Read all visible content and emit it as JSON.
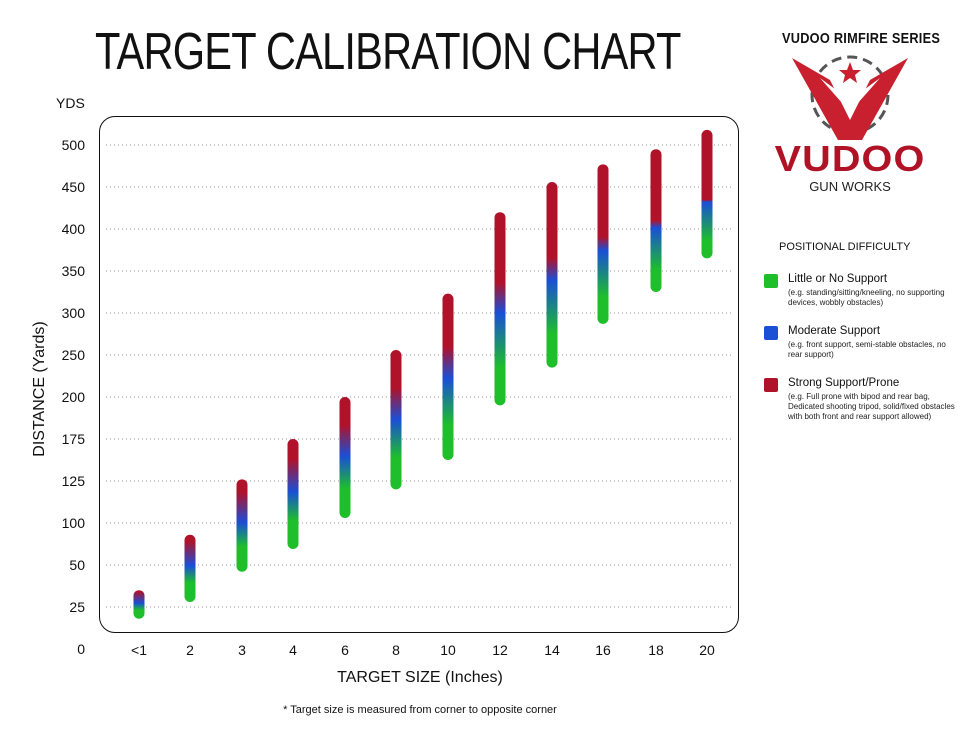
{
  "header": {
    "title": "TARGET CALIBRATION CHART"
  },
  "brand": {
    "series": "VUDOO RIMFIRE SERIES",
    "name": "VUDOO",
    "subtitle": "GUN WORKS"
  },
  "legend": {
    "title": "POSITIONAL DIFFICULTY",
    "items": [
      {
        "label": "Little or No Support",
        "desc": "(e.g. standing/sitting/kneeling, no supporting devices, wobbly obstacles)",
        "color": "#1ebf2a"
      },
      {
        "label": "Moderate Support",
        "desc": "(e.g. front support, semi-stable obstacles, no rear support)",
        "color": "#1a4fd6"
      },
      {
        "label": "Strong Support/Prone",
        "desc": "(e.g. Full prone with bipod and rear bag, Dedicated shooting tripod, solid/fixed obstacles with both front and rear support allowed)",
        "color": "#b0122a"
      }
    ]
  },
  "footnote": "* Target size is measured from corner to opposite corner",
  "chart_data": {
    "type": "bar",
    "title": "TARGET CALIBRATION CHART",
    "xlabel": "TARGET SIZE (Inches)",
    "ylabel": "DISTANCE (Yards)",
    "yunit": "YDS",
    "yticks": [
      0,
      25,
      50,
      100,
      125,
      175,
      200,
      250,
      300,
      350,
      400,
      450,
      500
    ],
    "categories": [
      "<1",
      "2",
      "3",
      "4",
      "6",
      "8",
      "10",
      "12",
      "14",
      "16",
      "18",
      "20"
    ],
    "ranges": [
      [
        18,
        35
      ],
      [
        28,
        86
      ],
      [
        46,
        127
      ],
      [
        69,
        175
      ],
      [
        103,
        200
      ],
      [
        120,
        256
      ],
      [
        150,
        323
      ],
      [
        195,
        420
      ],
      [
        235,
        456
      ],
      [
        287,
        477
      ],
      [
        325,
        495
      ],
      [
        365,
        518
      ]
    ],
    "grid": true,
    "legend_position": "right",
    "colors": {
      "low": "#1ebf2a",
      "mid": "#1a4fd6",
      "high": "#b0122a"
    }
  }
}
